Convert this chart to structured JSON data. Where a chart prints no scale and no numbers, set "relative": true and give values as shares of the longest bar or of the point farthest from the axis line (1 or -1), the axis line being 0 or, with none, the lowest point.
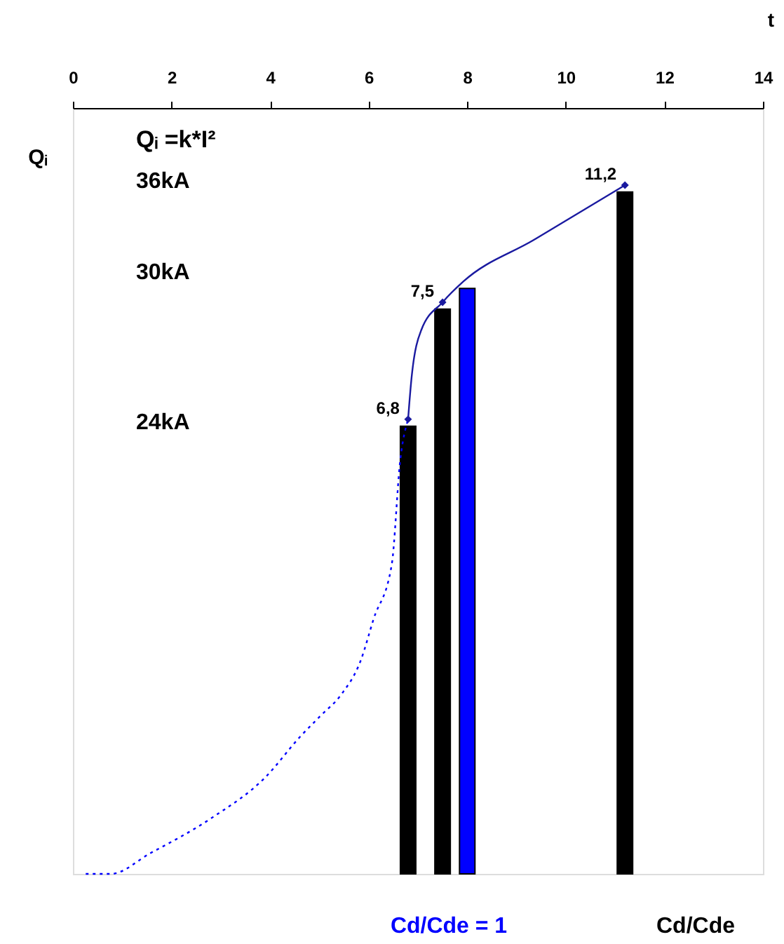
{
  "chart_data": {
    "type": "bar",
    "relative": true,
    "xlabel": "t",
    "ylabel": "Qᵢ",
    "xlim": [
      0,
      14
    ],
    "xticks": [
      0,
      2,
      4,
      6,
      8,
      10,
      12,
      14
    ],
    "grid": false,
    "annotations": [
      "Qᵢ =k*I²",
      "36kA",
      "30kA",
      "24kA",
      "Cd/Cde = 1",
      "Cd/Cde",
      {
        "text": "6,8",
        "x": 6.8,
        "y": 0.66
      },
      {
        "text": "7,5",
        "x": 7.5,
        "y": 0.83
      },
      {
        "text": "11,2",
        "x": 11.2,
        "y": 1
      }
    ],
    "series": [
      {
        "x": [
          6.8,
          7.5,
          8,
          11.2
        ],
        "values": [
          0.65,
          0.82,
          0.85,
          0.99
        ],
        "colors": [
          "#000000",
          "#000000",
          "#0000ff",
          "#000000"
        ]
      },
      {
        "type": "line",
        "line_style": "dotted",
        "color": "#0000ff",
        "x": [
          0.26,
          0.77,
          1.57,
          2.79,
          3.9,
          4.62,
          5.03,
          5.44,
          5.84,
          6.1,
          6.47,
          6.64,
          6.8
        ],
        "values": [
          0,
          0,
          0.03,
          0.08,
          0.14,
          0.2,
          0.23,
          0.26,
          0.31,
          0.37,
          0.45,
          0.6,
          0.66
        ]
      },
      {
        "type": "line",
        "line_style": "solid",
        "color": "#1a1aa0",
        "x": [
          6.8,
          6.87,
          7.07,
          7.5,
          7.92,
          9.34,
          11.2
        ],
        "values": [
          0.66,
          0.72,
          0.79,
          0.83,
          0.86,
          0.92,
          1
        ]
      },
      {
        "type": "scatter",
        "marker": "diamond",
        "color": "#1a1aa0",
        "x": [
          6.8,
          7.5,
          11.2
        ],
        "values": [
          0.66,
          0.83,
          1
        ]
      }
    ]
  }
}
